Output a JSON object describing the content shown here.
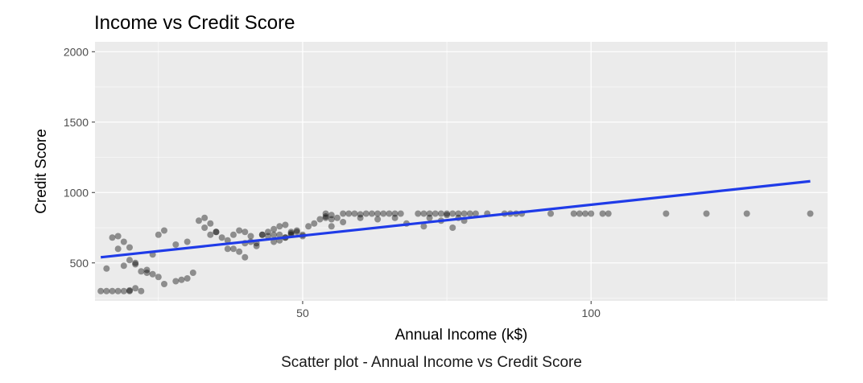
{
  "chart_data": {
    "type": "scatter",
    "title": "Income vs Credit Score",
    "xlabel": "Annual Income (k$)",
    "ylabel": "Credit Score",
    "x_ticks": [
      50,
      100
    ],
    "y_ticks": [
      500,
      1000,
      1500,
      2000
    ],
    "xlim": [
      14,
      141
    ],
    "ylim": [
      230,
      2070
    ],
    "grid": true,
    "background": "#ebebeb",
    "point_color": "#000000",
    "trend_color": "#1f3be8",
    "trend_line": {
      "x": [
        15,
        138
      ],
      "y": [
        540,
        1080
      ]
    },
    "points": {
      "x": [
        15,
        16,
        17,
        18,
        19,
        20,
        20,
        21,
        22,
        16,
        18,
        19,
        20,
        21,
        22,
        23,
        24,
        25,
        26,
        17,
        18,
        19,
        20,
        21,
        23,
        24,
        25,
        26,
        28,
        29,
        30,
        31,
        32,
        33,
        34,
        35,
        36,
        37,
        38,
        39,
        40,
        41,
        42,
        43,
        44,
        45,
        46,
        47,
        48,
        49,
        50,
        28,
        30,
        33,
        34,
        35,
        37,
        38,
        39,
        40,
        41,
        42,
        43,
        44,
        45,
        46,
        47,
        48,
        49,
        51,
        52,
        53,
        54,
        54,
        54,
        55,
        55,
        56,
        57,
        58,
        59,
        60,
        61,
        62,
        63,
        64,
        65,
        66,
        67,
        70,
        71,
        72,
        73,
        74,
        75,
        76,
        77,
        78,
        79,
        80,
        82,
        85,
        86,
        87,
        88,
        93,
        97,
        98,
        99,
        100,
        102,
        103,
        113,
        120,
        127,
        138,
        40,
        45,
        46,
        47,
        48,
        50,
        55,
        57,
        60,
        63,
        66,
        68,
        71,
        72,
        74,
        75,
        76,
        77,
        78
      ],
      "y": [
        300,
        300,
        300,
        300,
        300,
        300,
        305,
        320,
        300,
        460,
        600,
        480,
        610,
        500,
        440,
        450,
        560,
        700,
        730,
        680,
        690,
        650,
        520,
        490,
        430,
        420,
        400,
        350,
        370,
        380,
        390,
        430,
        800,
        750,
        700,
        720,
        680,
        600,
        700,
        730,
        720,
        690,
        640,
        700,
        690,
        740,
        760,
        770,
        710,
        720,
        700,
        630,
        650,
        820,
        780,
        720,
        660,
        600,
        580,
        640,
        650,
        620,
        700,
        720,
        650,
        660,
        680,
        700,
        730,
        760,
        780,
        810,
        820,
        830,
        850,
        810,
        840,
        820,
        850,
        850,
        850,
        845,
        850,
        850,
        850,
        850,
        850,
        850,
        850,
        850,
        850,
        850,
        850,
        850,
        850,
        850,
        850,
        850,
        850,
        850,
        850,
        850,
        850,
        850,
        850,
        850,
        850,
        850,
        850,
        850,
        850,
        850,
        850,
        850,
        850,
        850,
        540,
        700,
        700,
        680,
        720,
        690,
        760,
        790,
        820,
        810,
        820,
        780,
        760,
        820,
        800,
        840,
        750,
        820,
        800
      ]
    }
  },
  "caption": "Scatter plot - Annual Income vs Credit Score"
}
